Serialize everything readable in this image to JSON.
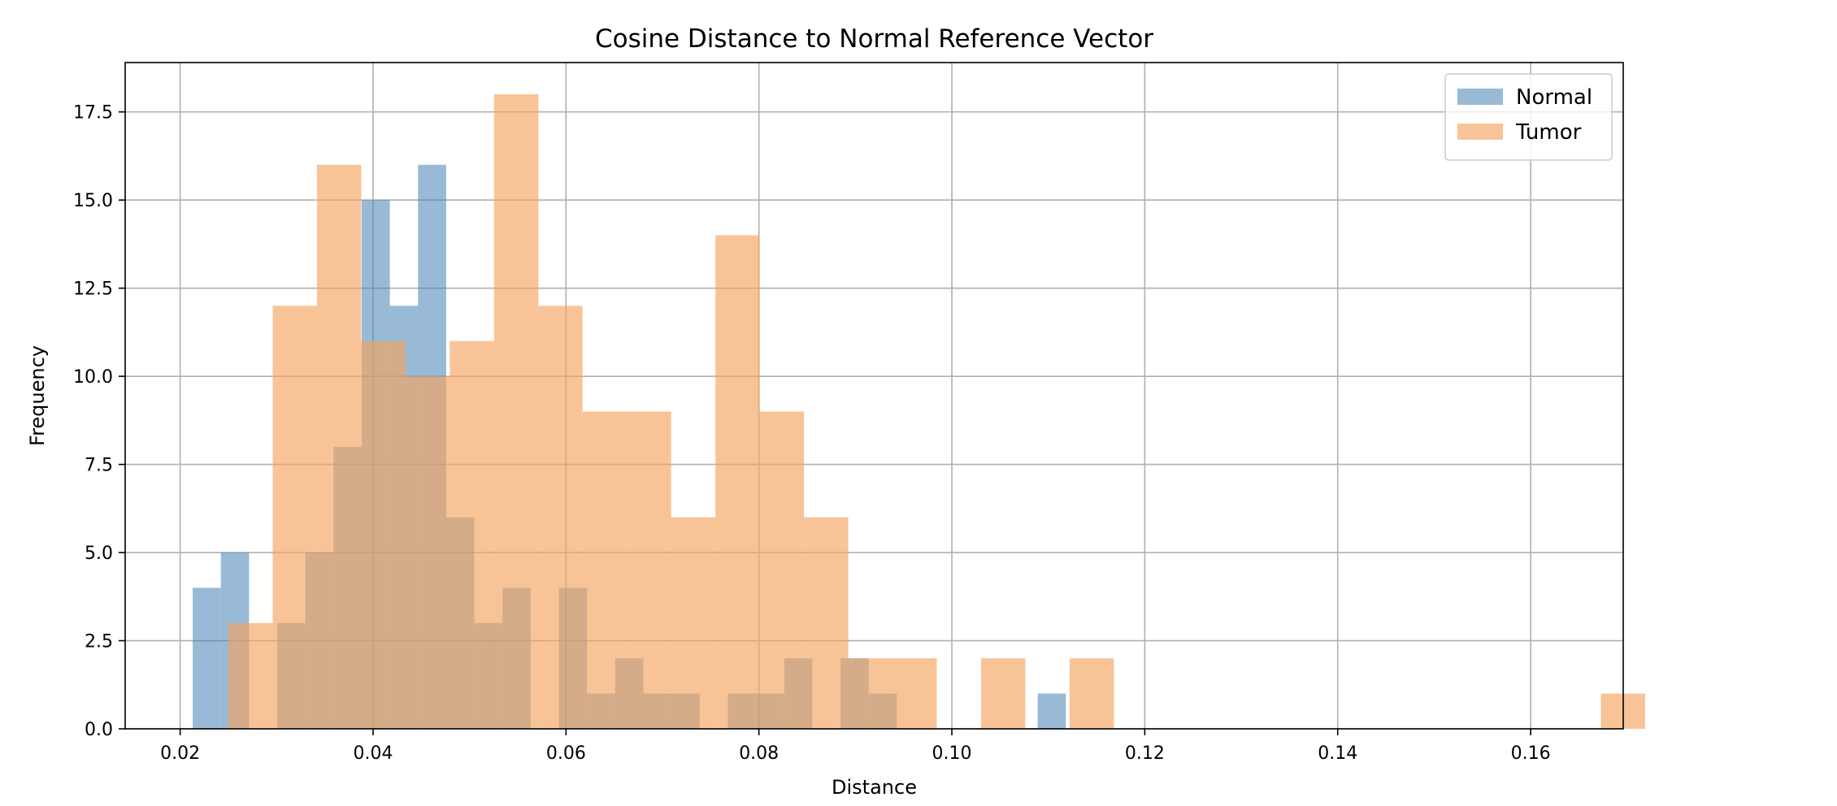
{
  "chart_data": {
    "type": "histogram",
    "title": "Cosine Distance to Normal Reference Vector",
    "xlabel": "Distance",
    "ylabel": "Frequency",
    "xlim": [
      0.0143,
      0.1696
    ],
    "ylim": [
      0,
      18.9
    ],
    "xticks": [
      0.02,
      0.04,
      0.06,
      0.08,
      0.1,
      0.12,
      0.14,
      0.16
    ],
    "xtick_labels": [
      "0.02",
      "0.04",
      "0.06",
      "0.08",
      "0.10",
      "0.12",
      "0.14",
      "0.16"
    ],
    "yticks": [
      0,
      2.5,
      5,
      7.5,
      10,
      12.5,
      15,
      17.5
    ],
    "ytick_labels": [
      "0.0",
      "2.5",
      "5.0",
      "7.5",
      "10.0",
      "12.5",
      "15.0",
      "17.5"
    ],
    "grid": true,
    "legend_position": "top-right",
    "series": [
      {
        "name": "Normal",
        "color": "#4682b4",
        "opacity": 0.55,
        "bin_start": 0.0213,
        "bin_width": 0.00292,
        "counts": [
          4,
          5,
          0,
          3,
          5,
          8,
          15,
          12,
          16,
          6,
          3,
          4,
          0,
          4,
          1,
          2,
          1,
          1,
          0,
          1,
          1,
          2,
          0,
          2,
          1,
          0,
          0,
          0,
          0,
          0,
          1
        ]
      },
      {
        "name": "Tumor",
        "color": "#f4a460",
        "opacity": 0.65,
        "bin_start": 0.025,
        "bin_width": 0.00459,
        "counts": [
          3,
          12,
          16,
          11,
          10,
          11,
          18,
          12,
          9,
          9,
          6,
          14,
          9,
          6,
          2,
          2,
          0,
          2,
          0,
          2,
          0,
          0,
          0,
          0,
          0,
          0,
          0,
          0,
          0,
          0,
          0,
          1
        ]
      }
    ]
  }
}
